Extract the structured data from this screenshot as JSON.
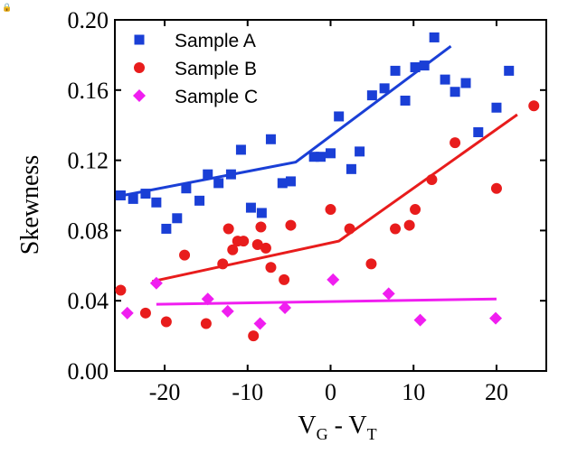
{
  "chart_data": {
    "type": "scatter",
    "title": "",
    "xlabel": {
      "base": "V",
      "sub1": "G",
      "mid": " - V",
      "sub2": "T"
    },
    "ylabel": "Skewness",
    "xlim": [
      -26,
      26
    ],
    "ylim": [
      0.0,
      0.2
    ],
    "x_ticks": [
      -20,
      -10,
      0,
      10,
      20
    ],
    "x_tick_labels": [
      "-20",
      "-10",
      "0",
      "10",
      "20"
    ],
    "y_ticks": [
      0.0,
      0.04,
      0.08,
      0.12,
      0.16,
      0.2
    ],
    "y_tick_labels": [
      "0.00",
      "0.04",
      "0.08",
      "0.12",
      "0.16",
      "0.20"
    ],
    "legend_position": "top-left",
    "series": [
      {
        "name": "Sample A",
        "marker": "square",
        "color": "#1a3fd6",
        "points": [
          [
            -25.3,
            0.1
          ],
          [
            -23.8,
            0.098
          ],
          [
            -22.3,
            0.101
          ],
          [
            -21,
            0.096
          ],
          [
            -19.8,
            0.081
          ],
          [
            -18.5,
            0.087
          ],
          [
            -17.4,
            0.104
          ],
          [
            -15.8,
            0.097
          ],
          [
            -14.8,
            0.112
          ],
          [
            -13.5,
            0.107
          ],
          [
            -12,
            0.112
          ],
          [
            -10.8,
            0.126
          ],
          [
            -9.6,
            0.093
          ],
          [
            -8.3,
            0.09
          ],
          [
            -7.2,
            0.132
          ],
          [
            -5.8,
            0.107
          ],
          [
            -4.8,
            0.108
          ],
          [
            -2.0,
            0.122
          ],
          [
            -1.2,
            0.122
          ],
          [
            0.0,
            0.124
          ],
          [
            1.0,
            0.145
          ],
          [
            2.5,
            0.115
          ],
          [
            3.5,
            0.125
          ],
          [
            5.0,
            0.157
          ],
          [
            6.5,
            0.161
          ],
          [
            7.8,
            0.171
          ],
          [
            9.0,
            0.154
          ],
          [
            10.2,
            0.173
          ],
          [
            11.3,
            0.174
          ],
          [
            12.5,
            0.19
          ],
          [
            13.8,
            0.166
          ],
          [
            15.0,
            0.159
          ],
          [
            16.3,
            0.164
          ],
          [
            17.8,
            0.136
          ],
          [
            20.0,
            0.15
          ],
          [
            21.5,
            0.171
          ]
        ],
        "fit": [
          [
            -25,
            0.1
          ],
          [
            -4.2,
            0.119
          ],
          [
            14.5,
            0.185
          ]
        ]
      },
      {
        "name": "Sample B",
        "marker": "circle",
        "color": "#e81c1c",
        "points": [
          [
            -25.3,
            0.046
          ],
          [
            -22.3,
            0.033
          ],
          [
            -19.8,
            0.028
          ],
          [
            -17.6,
            0.066
          ],
          [
            -15,
            0.027
          ],
          [
            -13,
            0.061
          ],
          [
            -12.3,
            0.081
          ],
          [
            -11.8,
            0.069
          ],
          [
            -11.2,
            0.074
          ],
          [
            -10.5,
            0.074
          ],
          [
            -9.3,
            0.02
          ],
          [
            -8.8,
            0.072
          ],
          [
            -8.4,
            0.082
          ],
          [
            -7.8,
            0.07
          ],
          [
            -7.2,
            0.059
          ],
          [
            -5.6,
            0.052
          ],
          [
            -4.8,
            0.083
          ],
          [
            0.0,
            0.092
          ],
          [
            2.3,
            0.081
          ],
          [
            4.9,
            0.061
          ],
          [
            7.8,
            0.081
          ],
          [
            9.5,
            0.083
          ],
          [
            10.2,
            0.092
          ],
          [
            12.2,
            0.109
          ],
          [
            15.0,
            0.13
          ],
          [
            20.0,
            0.104
          ],
          [
            24.5,
            0.151
          ]
        ],
        "fit": [
          [
            -21.5,
            0.051
          ],
          [
            1.0,
            0.074
          ],
          [
            22.5,
            0.146
          ]
        ]
      },
      {
        "name": "Sample C",
        "marker": "diamond",
        "color": "#f01ef0",
        "points": [
          [
            -24.5,
            0.033
          ],
          [
            -21,
            0.05
          ],
          [
            -14.8,
            0.041
          ],
          [
            -12.4,
            0.034
          ],
          [
            -8.5,
            0.027
          ],
          [
            -5.5,
            0.036
          ],
          [
            0.3,
            0.052
          ],
          [
            7.0,
            0.044
          ],
          [
            10.8,
            0.029
          ],
          [
            19.9,
            0.03
          ]
        ],
        "fit": [
          [
            -21,
            0.038
          ],
          [
            20,
            0.041
          ]
        ]
      }
    ]
  },
  "corner_icon": "lock-icon",
  "corner_icon_glyph": "🔒"
}
